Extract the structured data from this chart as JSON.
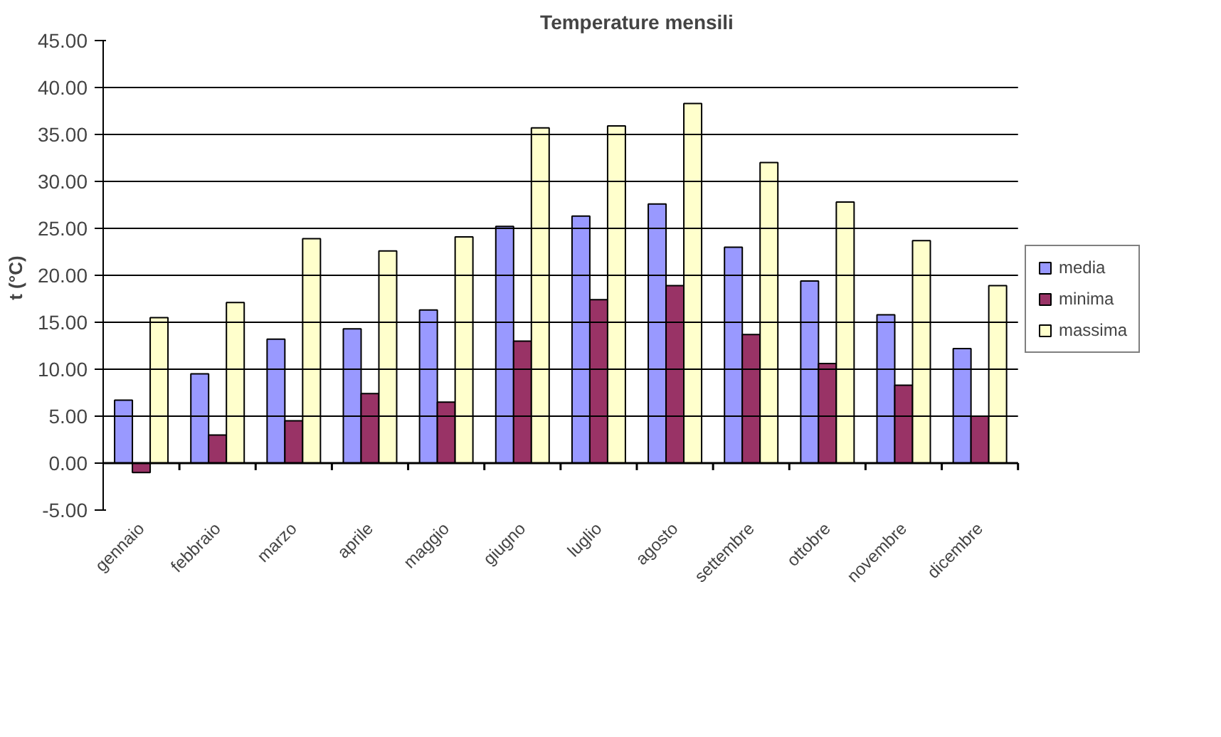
{
  "chart_data": {
    "type": "bar",
    "title": "Temperature mensili",
    "ylabel": "t  (°C)",
    "categories": [
      "gennaio",
      "febbraio",
      "marzo",
      "aprile",
      "maggio",
      "giugno",
      "luglio",
      "agosto",
      "settembre",
      "ottobre",
      "novembre",
      "dicembre"
    ],
    "series": [
      {
        "name": "media",
        "color": "#9999ff",
        "values": [
          6.7,
          9.5,
          13.2,
          14.3,
          16.3,
          25.2,
          26.3,
          27.6,
          23.0,
          19.4,
          15.8,
          12.2
        ]
      },
      {
        "name": "minima",
        "color": "#993366",
        "values": [
          -1.0,
          3.0,
          4.5,
          7.4,
          6.5,
          13.0,
          17.4,
          18.9,
          13.7,
          10.6,
          8.3,
          5.0
        ]
      },
      {
        "name": "massima",
        "color": "#ffffcc",
        "values": [
          15.5,
          17.1,
          23.9,
          22.6,
          24.1,
          35.7,
          35.9,
          38.3,
          32.0,
          27.8,
          23.7,
          18.9
        ]
      }
    ],
    "ylim": [
      -5,
      45
    ],
    "yticks": [
      {
        "value": -5,
        "label": "-5.00"
      },
      {
        "value": 0,
        "label": "0.00"
      },
      {
        "value": 5,
        "label": "5.00"
      },
      {
        "value": 10,
        "label": "10.00"
      },
      {
        "value": 15,
        "label": "15.00"
      },
      {
        "value": 20,
        "label": "20.00"
      },
      {
        "value": 25,
        "label": "25.00"
      },
      {
        "value": 30,
        "label": "30.00"
      },
      {
        "value": 35,
        "label": "35.00"
      },
      {
        "value": 40,
        "label": "40.00"
      },
      {
        "value": 45,
        "label": "45.00"
      }
    ],
    "grid": "y",
    "legend": "right"
  }
}
